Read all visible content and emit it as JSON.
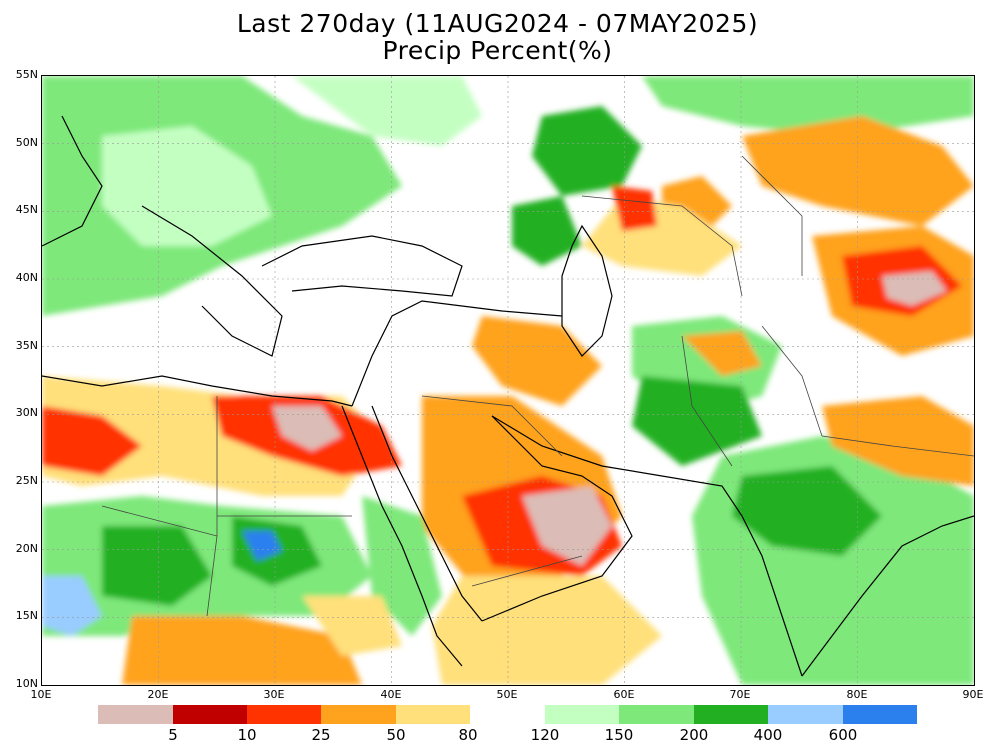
{
  "title": {
    "line1": "Last 270day (11AUG2024 - 07MAY2025)",
    "line2": "Precip Percent(%)"
  },
  "map": {
    "lat_labels": [
      "55N",
      "50N",
      "45N",
      "40N",
      "35N",
      "30N",
      "25N",
      "20N",
      "15N",
      "10N"
    ],
    "lon_labels": [
      "10E",
      "20E",
      "30E",
      "40E",
      "50E",
      "60E",
      "70E",
      "80E",
      "90E"
    ],
    "colors": {
      "lt5": "#dcbcb6",
      "5-10": "#c00000",
      "10-25": "#ff3300",
      "25-50": "#ffa21e",
      "50-80": "#ffe07a",
      "120-150": "#c4ffc2",
      "150-200": "#7ee87a",
      "200-400": "#22b022",
      "400-600": "#99ccff",
      "gt600": "#2b80ee"
    }
  },
  "legend": {
    "dry": {
      "colors": [
        "#dcbcb6",
        "#c00000",
        "#ff3300",
        "#ffa21e",
        "#ffe07a"
      ],
      "labels": [
        "5",
        "10",
        "25",
        "50",
        "80"
      ]
    },
    "wet": {
      "colors": [
        "#c4ffc2",
        "#7ee87a",
        "#22b022",
        "#99ccff",
        "#2b80ee"
      ],
      "labels": [
        "120",
        "150",
        "200",
        "400",
        "600"
      ]
    }
  }
}
